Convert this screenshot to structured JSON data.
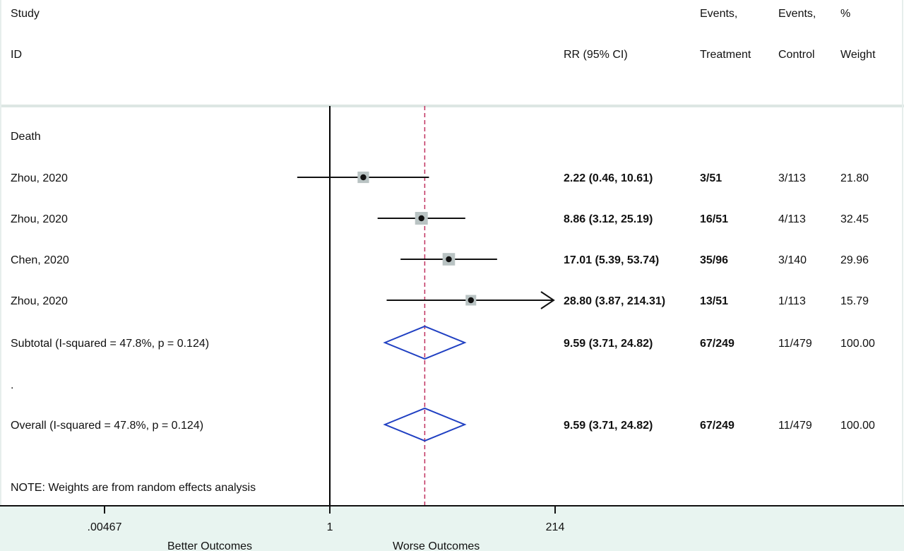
{
  "colors": {
    "background_top": "#ffffff",
    "background_bottom": "#e8f4f0",
    "separator": "#dde6e3",
    "diamond": "#1f3fc2",
    "null_line": "#000000",
    "overall_line": "#c0305e",
    "box": "#b9c3c3",
    "ci_line": "#111111"
  },
  "headers": {
    "study": "Study",
    "id": "ID",
    "rr": "RR (95% CI)",
    "events_treatment_1": "Events,",
    "events_treatment_2": "Treatment",
    "events_control_1": "Events,",
    "events_control_2": "Control",
    "weight_1": "%",
    "weight_2": "Weight"
  },
  "group_label": "Death",
  "dot_row": ".",
  "note": "NOTE: Weights are from random effects analysis",
  "footer": {
    "better": "Better Outcomes",
    "worse": "Worse Outcomes"
  },
  "chart_data": {
    "type": "forest",
    "scale": "log",
    "xlim": [
      0.00467,
      214
    ],
    "ticks": [
      {
        "value": 0.00467,
        "label": ".00467"
      },
      {
        "value": 1,
        "label": "1"
      },
      {
        "value": 214,
        "label": "214"
      }
    ],
    "overall_effect": 9.59,
    "studies": [
      {
        "label": "Zhou, 2020",
        "rr": 2.22,
        "lo": 0.46,
        "hi": 10.61,
        "text": "2.22 (0.46, 10.61)",
        "treatment": "3/51",
        "control": "3/113",
        "weight": "21.80",
        "w": 21.8,
        "arrow": false
      },
      {
        "label": "Zhou, 2020",
        "rr": 8.86,
        "lo": 3.12,
        "hi": 25.19,
        "text": "8.86 (3.12, 25.19)",
        "treatment": "16/51",
        "control": "4/113",
        "weight": "32.45",
        "w": 32.45,
        "arrow": false
      },
      {
        "label": "Chen, 2020",
        "rr": 17.01,
        "lo": 5.39,
        "hi": 53.74,
        "text": "17.01 (5.39, 53.74)",
        "treatment": "35/96",
        "control": "3/140",
        "weight": "29.96",
        "w": 29.96,
        "arrow": false
      },
      {
        "label": "Zhou, 2020",
        "rr": 28.8,
        "lo": 3.87,
        "hi": 214.31,
        "text": "28.80 (3.87, 214.31)",
        "treatment": "13/51",
        "control": "1/113",
        "weight": "15.79",
        "w": 15.79,
        "arrow": true
      }
    ],
    "subtotal": {
      "label": "Subtotal  (I-squared = 47.8%, p = 0.124)",
      "rr": 9.59,
      "lo": 3.71,
      "hi": 24.82,
      "text": "9.59 (3.71, 24.82)",
      "treatment": "67/249",
      "control": "11/479",
      "weight": "100.00"
    },
    "overall": {
      "label": "Overall  (I-squared = 47.8%, p = 0.124)",
      "rr": 9.59,
      "lo": 3.71,
      "hi": 24.82,
      "text": "9.59 (3.71, 24.82)",
      "treatment": "67/249",
      "control": "11/479",
      "weight": "100.00"
    }
  }
}
